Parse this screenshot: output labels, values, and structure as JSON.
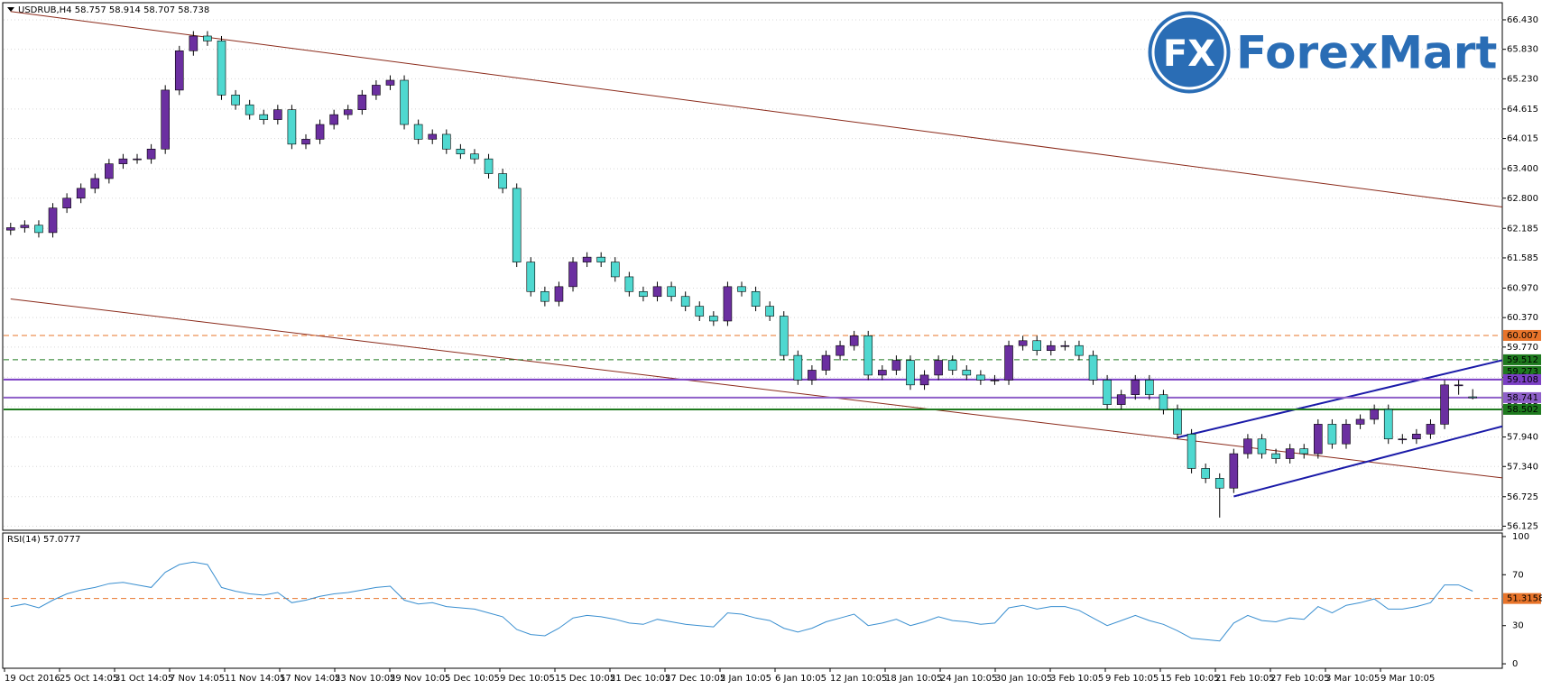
{
  "logo": {
    "mark": "FX",
    "text": "ForexMart"
  },
  "chart_data": [
    {
      "type": "candlestick",
      "title": "USDRUB,H4 58.757 58.914 58.707 58.738",
      "up_color": "#6b2fa0",
      "down_color": "#4fd8d0",
      "grid": true,
      "ylim": [
        56.06,
        66.76
      ],
      "yticks": [
        {
          "value": 66.43,
          "label": "66.430"
        },
        {
          "value": 65.83,
          "label": "65.830"
        },
        {
          "value": 65.23,
          "label": "65.230"
        },
        {
          "value": 64.615,
          "label": "64.615"
        },
        {
          "value": 64.015,
          "label": "64.015"
        },
        {
          "value": 63.4,
          "label": "63.400"
        },
        {
          "value": 62.8,
          "label": "62.800"
        },
        62.185,
        61.585,
        {
          "value": 60.97,
          "label": "60.970"
        },
        {
          "value": 60.37,
          "label": "60.370"
        },
        {
          "value": 59.77,
          "label": "59.770"
        },
        59.155,
        58.555,
        {
          "value": 57.94,
          "label": "57.940"
        },
        {
          "value": 57.34,
          "label": "57.340"
        },
        56.725,
        56.125
      ],
      "ohlc": [
        [
          62.15,
          62.3,
          62.05,
          62.2
        ],
        [
          62.2,
          62.35,
          62.1,
          62.25
        ],
        [
          62.25,
          62.35,
          62.0,
          62.1
        ],
        [
          62.1,
          62.7,
          62.0,
          62.6
        ],
        [
          62.6,
          62.9,
          62.5,
          62.8
        ],
        [
          62.8,
          63.1,
          62.7,
          63.0
        ],
        [
          63.0,
          63.3,
          62.9,
          63.2
        ],
        [
          63.2,
          63.6,
          63.1,
          63.5
        ],
        [
          63.5,
          63.7,
          63.4,
          63.6
        ],
        [
          63.6,
          63.7,
          63.5,
          63.6
        ],
        [
          63.6,
          63.9,
          63.5,
          63.8
        ],
        [
          63.8,
          65.1,
          63.7,
          65.0
        ],
        [
          65.0,
          65.9,
          64.9,
          65.8
        ],
        [
          65.8,
          66.2,
          65.7,
          66.1
        ],
        [
          66.1,
          66.2,
          65.9,
          66.0
        ],
        [
          66.0,
          66.1,
          64.8,
          64.9
        ],
        [
          64.9,
          65.0,
          64.6,
          64.7
        ],
        [
          64.7,
          64.8,
          64.4,
          64.5
        ],
        [
          64.5,
          64.6,
          64.3,
          64.4
        ],
        [
          64.4,
          64.7,
          64.3,
          64.6
        ],
        [
          64.6,
          64.7,
          63.8,
          63.9
        ],
        [
          63.9,
          64.1,
          63.8,
          64.0
        ],
        [
          64.0,
          64.4,
          63.9,
          64.3
        ],
        [
          64.3,
          64.6,
          64.2,
          64.5
        ],
        [
          64.5,
          64.7,
          64.4,
          64.6
        ],
        [
          64.6,
          65.0,
          64.5,
          64.9
        ],
        [
          64.9,
          65.2,
          64.8,
          65.1
        ],
        [
          65.1,
          65.3,
          65.0,
          65.2
        ],
        [
          65.2,
          65.3,
          64.2,
          64.3
        ],
        [
          64.3,
          64.4,
          63.9,
          64.0
        ],
        [
          64.0,
          64.2,
          63.9,
          64.1
        ],
        [
          64.1,
          64.2,
          63.7,
          63.8
        ],
        [
          63.8,
          63.9,
          63.6,
          63.7
        ],
        [
          63.7,
          63.8,
          63.5,
          63.6
        ],
        [
          63.6,
          63.7,
          63.2,
          63.3
        ],
        [
          63.3,
          63.4,
          62.9,
          63.0
        ],
        [
          63.0,
          63.1,
          61.4,
          61.5
        ],
        [
          61.5,
          61.6,
          60.8,
          60.9
        ],
        [
          60.9,
          61.0,
          60.6,
          60.7
        ],
        [
          60.7,
          61.1,
          60.6,
          61.0
        ],
        [
          61.0,
          61.6,
          60.9,
          61.5
        ],
        [
          61.5,
          61.7,
          61.4,
          61.6
        ],
        [
          61.6,
          61.7,
          61.4,
          61.5
        ],
        [
          61.5,
          61.6,
          61.1,
          61.2
        ],
        [
          61.2,
          61.3,
          60.8,
          60.9
        ],
        [
          60.9,
          61.0,
          60.7,
          60.8
        ],
        [
          60.8,
          61.1,
          60.7,
          61.0
        ],
        [
          61.0,
          61.1,
          60.7,
          60.8
        ],
        [
          60.8,
          60.9,
          60.5,
          60.6
        ],
        [
          60.6,
          60.7,
          60.3,
          60.4
        ],
        [
          60.4,
          60.5,
          60.2,
          60.3
        ],
        [
          60.3,
          61.1,
          60.2,
          61.0
        ],
        [
          61.0,
          61.1,
          60.8,
          60.9
        ],
        [
          60.9,
          61.0,
          60.5,
          60.6
        ],
        [
          60.6,
          60.7,
          60.3,
          60.4
        ],
        [
          60.4,
          60.5,
          59.5,
          59.6
        ],
        [
          59.6,
          59.7,
          59.0,
          59.1
        ],
        [
          59.1,
          59.4,
          59.0,
          59.3
        ],
        [
          59.3,
          59.7,
          59.2,
          59.6
        ],
        [
          59.6,
          59.9,
          59.5,
          59.8
        ],
        [
          59.8,
          60.1,
          59.7,
          60.0
        ],
        [
          60.0,
          60.1,
          59.1,
          59.2
        ],
        [
          59.2,
          59.4,
          59.1,
          59.3
        ],
        [
          59.3,
          59.6,
          59.2,
          59.5
        ],
        [
          59.5,
          59.6,
          58.9,
          59.0
        ],
        [
          59.0,
          59.3,
          58.9,
          59.2
        ],
        [
          59.2,
          59.6,
          59.1,
          59.5
        ],
        [
          59.5,
          59.6,
          59.2,
          59.3
        ],
        [
          59.3,
          59.4,
          59.1,
          59.2
        ],
        [
          59.2,
          59.3,
          59.0,
          59.1
        ],
        [
          59.1,
          59.2,
          59.0,
          59.1
        ],
        [
          59.1,
          59.9,
          59.0,
          59.8
        ],
        [
          59.8,
          60.0,
          59.7,
          59.9
        ],
        [
          59.9,
          60.0,
          59.6,
          59.7
        ],
        [
          59.7,
          59.9,
          59.6,
          59.8
        ],
        [
          59.8,
          59.9,
          59.7,
          59.8
        ],
        [
          59.8,
          59.9,
          59.5,
          59.6
        ],
        [
          59.6,
          59.7,
          59.0,
          59.1
        ],
        [
          59.1,
          59.2,
          58.5,
          58.6
        ],
        [
          58.6,
          58.9,
          58.5,
          58.8
        ],
        [
          58.8,
          59.2,
          58.7,
          59.1
        ],
        [
          59.1,
          59.2,
          58.7,
          58.8
        ],
        [
          58.8,
          58.9,
          58.4,
          58.5
        ],
        [
          58.5,
          58.6,
          57.9,
          58.0
        ],
        [
          58.0,
          58.1,
          57.2,
          57.3
        ],
        [
          57.3,
          57.4,
          57.0,
          57.1
        ],
        [
          57.1,
          57.2,
          56.3,
          56.9
        ],
        [
          56.9,
          57.7,
          56.8,
          57.6
        ],
        [
          57.6,
          58.0,
          57.5,
          57.9
        ],
        [
          57.9,
          58.0,
          57.5,
          57.6
        ],
        [
          57.6,
          57.7,
          57.4,
          57.5
        ],
        [
          57.5,
          57.8,
          57.4,
          57.7
        ],
        [
          57.7,
          57.8,
          57.5,
          57.6
        ],
        [
          57.6,
          58.3,
          57.5,
          58.2
        ],
        [
          58.2,
          58.3,
          57.7,
          57.8
        ],
        [
          57.8,
          58.3,
          57.7,
          58.2
        ],
        [
          58.2,
          58.4,
          58.1,
          58.3
        ],
        [
          58.3,
          58.6,
          58.2,
          58.5
        ],
        [
          58.5,
          58.6,
          57.8,
          57.9
        ],
        [
          57.9,
          58.0,
          57.8,
          57.9
        ],
        [
          57.9,
          58.1,
          57.8,
          58.0
        ],
        [
          58.0,
          58.3,
          57.9,
          58.2
        ],
        [
          58.2,
          59.1,
          58.1,
          59.0
        ],
        [
          59.0,
          59.1,
          58.8,
          59.0
        ],
        [
          58.757,
          58.914,
          58.707,
          58.738
        ]
      ],
      "levels": [
        {
          "value": 60.007,
          "color": "#e8742a",
          "dash": true,
          "line": true
        },
        {
          "value": 59.512,
          "color": "#1e7a1e",
          "dash": true,
          "line": true
        },
        {
          "value": 59.273,
          "color": "#1e7a1e",
          "dash": false,
          "line": false
        },
        {
          "value": 59.108,
          "color": "#7b3fc4",
          "dash": false,
          "line": true
        },
        {
          "value": 58.741,
          "color": "#8e5fc8",
          "dash": false,
          "line": true
        },
        {
          "value": 58.502,
          "color": "#1e7a1e",
          "dash": false,
          "line": true
        }
      ],
      "trendlines": [
        {
          "color": "#8b2a1a",
          "x": [
            0,
            104
          ],
          "values": [
            66.6,
            62.7
          ]
        },
        {
          "color": "#8b2a1a",
          "x": [
            0,
            104
          ],
          "values": [
            60.75,
            57.18
          ]
        },
        {
          "color": "#1a1aa8",
          "x": [
            83,
            104
          ],
          "values": [
            57.93,
            59.36
          ]
        },
        {
          "color": "#1a1aa8",
          "x": [
            87,
            104
          ],
          "values": [
            56.73,
            58.0
          ]
        }
      ]
    },
    {
      "type": "line",
      "title": "RSI(14) 57.0777",
      "color": "#3a8fd0",
      "ylim": [
        -3.5,
        102.8
      ],
      "yticks": [
        100,
        70,
        30,
        0
      ],
      "level": 51.3158,
      "level_color": "#e8742a",
      "values": [
        45,
        47,
        44,
        50,
        55,
        58,
        60,
        63,
        64,
        62,
        60,
        72,
        78,
        80,
        78,
        60,
        57,
        55,
        54,
        56,
        48,
        50,
        53,
        55,
        56,
        58,
        60,
        61,
        50,
        47,
        48,
        45,
        44,
        43,
        40,
        37,
        27,
        23,
        22,
        28,
        36,
        38,
        37,
        35,
        32,
        31,
        35,
        33,
        31,
        30,
        29,
        40,
        39,
        36,
        34,
        28,
        25,
        28,
        33,
        36,
        39,
        30,
        32,
        35,
        30,
        33,
        37,
        34,
        33,
        31,
        32,
        44,
        46,
        43,
        45,
        45,
        42,
        36,
        30,
        34,
        38,
        34,
        31,
        26,
        20,
        19,
        18,
        32,
        38,
        34,
        33,
        36,
        35,
        45,
        40,
        46,
        48,
        51,
        43,
        43,
        45,
        48,
        62,
        62,
        57.0777
      ],
      "time_labels": [
        "19 Oct 2016",
        "25 Oct 14:05",
        "31 Oct 14:05",
        "7 Nov 14:05",
        "11 Nov 14:05",
        "17 Nov 14:05",
        "23 Nov 10:05",
        "29 Nov 10:05",
        "5 Dec 10:05",
        "9 Dec 10:05",
        "15 Dec 10:05",
        "21 Dec 10:05",
        "27 Dec 10:05",
        "2 Jan 10:05",
        "6 Jan 10:05",
        "12 Jan 10:05",
        "18 Jan 10:05",
        "24 Jan 10:05",
        "30 Jan 10:05",
        "3 Feb 10:05",
        "9 Feb 10:05",
        "15 Feb 10:05",
        "21 Feb 10:05",
        "27 Feb 10:05",
        "3 Mar 10:05",
        "9 Mar 10:05"
      ]
    }
  ]
}
